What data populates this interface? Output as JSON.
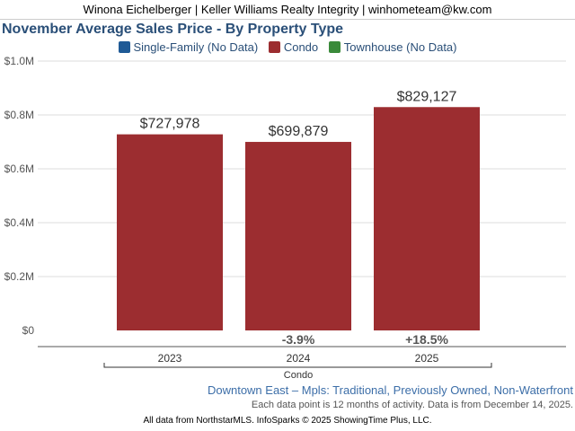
{
  "header": "Winona Eichelberger | Keller Williams Realty Integrity | winhometeam@kw.com",
  "legend": [
    {
      "label": "Single-Family (No Data)",
      "color": "#1f5a96"
    },
    {
      "label": "Condo",
      "color": "#9c2d30"
    },
    {
      "label": "Townhouse (No Data)",
      "color": "#3a8a3a"
    }
  ],
  "chart_data": {
    "type": "bar",
    "title": "November Average Sales Price - By Property Type",
    "categories": [
      "2023",
      "2024",
      "2025"
    ],
    "group_label": "Condo",
    "series": [
      {
        "name": "Condo",
        "values": [
          727978,
          699879,
          829127
        ],
        "value_labels": [
          "$727,978",
          "$699,879",
          "$829,127"
        ],
        "change_labels": [
          "",
          "-3.9%",
          "+18.5%"
        ],
        "color": "#9c2d30"
      }
    ],
    "ylim": [
      0,
      1000000
    ],
    "yticks": [
      0,
      200000,
      400000,
      600000,
      800000,
      1000000
    ],
    "ytick_labels": [
      "$0",
      "$0.2M",
      "$0.4M",
      "$0.6M",
      "$0.8M",
      "$1.0M"
    ],
    "grid": true,
    "legend_position": "top-center"
  },
  "subtitle": "Downtown East – Mpls: Traditional, Previously Owned, Non-Waterfront",
  "note": "Each data point is 12 months of activity. Data is from December 14, 2025.",
  "credit": "All data from NorthstarMLS. InfoSparks © 2025 ShowingTime Plus, LLC."
}
